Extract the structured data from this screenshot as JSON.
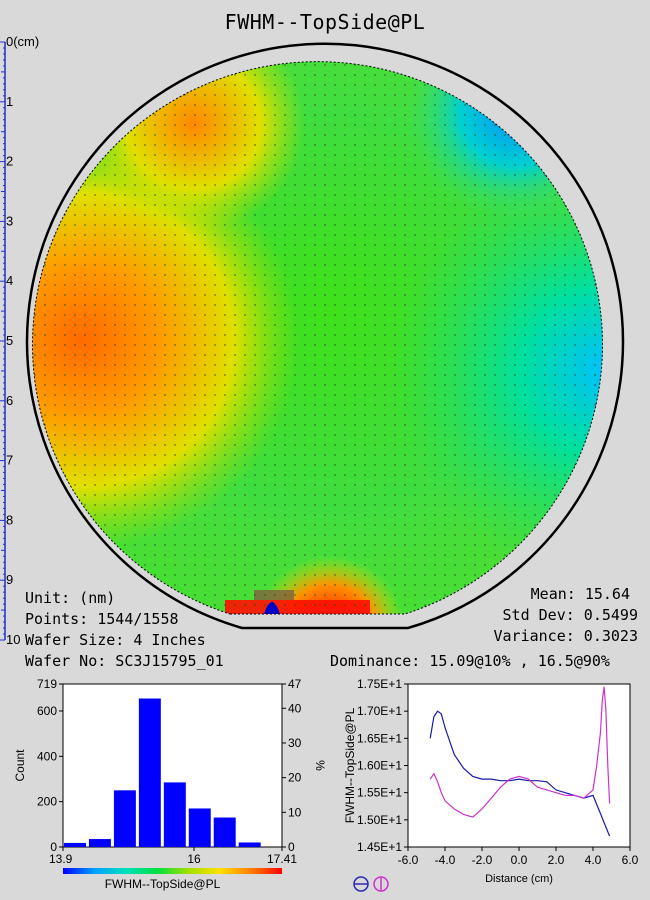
{
  "title": "FWHM--TopSide@PL",
  "ruler": {
    "unit_label": "0(cm)",
    "ticks": [
      "1",
      "2",
      "3",
      "4",
      "5",
      "6",
      "7",
      "8",
      "9",
      "10"
    ]
  },
  "wafer": {
    "unit": "Unit: (nm)",
    "points": "Points: 1544/1558",
    "size": "Wafer Size: 4 Inches",
    "wafer_no": "Wafer No: SC3J15795_01"
  },
  "stats": {
    "mean": "Mean: 15.64",
    "std_dev": "Std Dev: 0.5499",
    "variance": "Variance: 0.3023",
    "dominance": "Dominance: 15.09@10% , 16.5@90%"
  },
  "colors": {
    "background": "#d9d9d9",
    "bar": "#0000ff",
    "line_horizontal": "#1a1aa8",
    "line_vertical": "#cc33cc"
  },
  "chart_data": [
    {
      "type": "bar",
      "name": "histogram",
      "xlabel": "FWHM--TopSide@PL",
      "ylabel": "Count",
      "y2label": "%",
      "x_ticks": [
        "13.9",
        "16",
        "17.41"
      ],
      "xlim": [
        13.9,
        17.41
      ],
      "ylim": [
        0,
        719
      ],
      "y_ticks": [
        0,
        200,
        400,
        600,
        719
      ],
      "y2_ticks": [
        0,
        10,
        20,
        30,
        40,
        47
      ],
      "bin_centers": [
        14.1,
        14.5,
        14.9,
        15.3,
        15.7,
        16.1,
        16.5,
        16.9,
        17.3
      ],
      "values": [
        18,
        35,
        250,
        655,
        285,
        170,
        130,
        20,
        0
      ],
      "colorbar": [
        "#0000ff",
        "#00a0ff",
        "#00e0c0",
        "#00e040",
        "#a0e000",
        "#ffe000",
        "#ff8000",
        "#ff0000"
      ]
    },
    {
      "type": "line",
      "name": "line-scan",
      "xlabel": "Distance (cm)",
      "ylabel": "FWHM--TopSide@PL",
      "xlim": [
        -6.0,
        6.0
      ],
      "ylim": [
        14.5,
        17.5
      ],
      "x_ticks": [
        "-6.0",
        "-4.0",
        "-2.0",
        "0.0",
        "2.0",
        "4.0",
        "6.0"
      ],
      "y_ticks": [
        "1.45E+1",
        "1.50E+1",
        "1.55E+1",
        "1.60E+1",
        "1.65E+1",
        "1.70E+1",
        "1.75E+1"
      ],
      "series": [
        {
          "x": [
            -4.8,
            -4.6,
            -4.4,
            -4.2,
            -4.0,
            -3.8,
            -3.5,
            -3.0,
            -2.5,
            -2.0,
            -1.5,
            -1.0,
            -0.5,
            0.0,
            0.5,
            1.0,
            1.5,
            2.0,
            2.5,
            3.0,
            3.5,
            4.0,
            4.3,
            4.6,
            4.9
          ],
          "y": [
            16.5,
            16.9,
            17.0,
            16.95,
            16.7,
            16.5,
            16.2,
            15.95,
            15.8,
            15.75,
            15.75,
            15.72,
            15.72,
            15.75,
            15.72,
            15.72,
            15.7,
            15.55,
            15.5,
            15.45,
            15.4,
            15.45,
            15.2,
            14.95,
            14.7
          ]
        },
        {
          "x": [
            -4.8,
            -4.6,
            -4.4,
            -4.2,
            -4.0,
            -3.5,
            -3.0,
            -2.5,
            -2.0,
            -1.5,
            -1.0,
            -0.5,
            0.0,
            0.5,
            1.0,
            1.5,
            2.0,
            2.5,
            3.0,
            3.5,
            4.0,
            4.2,
            4.4,
            4.5,
            4.6,
            4.7,
            4.8,
            4.9
          ],
          "y": [
            15.75,
            15.85,
            15.7,
            15.5,
            15.35,
            15.2,
            15.1,
            15.05,
            15.2,
            15.4,
            15.6,
            15.75,
            15.8,
            15.75,
            15.6,
            15.55,
            15.5,
            15.45,
            15.45,
            15.4,
            15.55,
            16.0,
            16.6,
            17.2,
            17.45,
            17.0,
            16.0,
            15.3
          ]
        }
      ]
    }
  ]
}
